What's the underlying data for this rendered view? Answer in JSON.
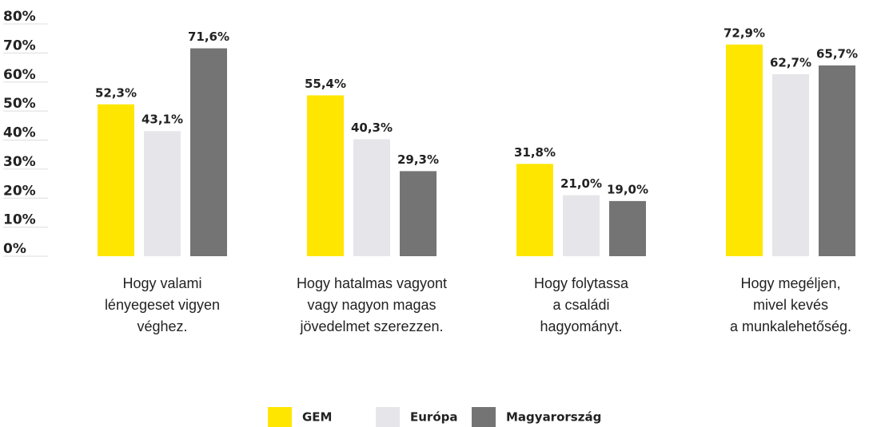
{
  "chart_data": {
    "type": "bar",
    "categories": [
      "Hogy valami\nlényegeset vigyen\nvéghez.",
      "Hogy hatalmas vagyont\nvagy nagyon magas\njövedelmet szerezzen.",
      "Hogy folytassa\na családi\nhagyományt.",
      "Hogy megéljen,\nmivel kevés\na munkalehetőség."
    ],
    "series": [
      {
        "name": "GEM",
        "color": "#ffe600",
        "values": [
          52.3,
          55.4,
          31.8,
          72.9
        ],
        "value_labels": [
          "52,3%",
          "55,4%",
          "31,8%",
          "72,9%"
        ]
      },
      {
        "name": "Európa",
        "color": "#e6e5ea",
        "values": [
          43.1,
          40.3,
          21.0,
          62.7
        ],
        "value_labels": [
          "43,1%",
          "40,3%",
          "21,0%",
          "62,7%"
        ]
      },
      {
        "name": "Magyarország",
        "color": "#747474",
        "values": [
          71.6,
          29.3,
          19.0,
          65.7
        ],
        "value_labels": [
          "71,6%",
          "29,3%",
          "19,0%",
          "65,7%"
        ]
      }
    ],
    "ylim": [
      0,
      80
    ],
    "yticks": [
      {
        "value": 0,
        "label": "0%"
      },
      {
        "value": 10,
        "label": "10%"
      },
      {
        "value": 20,
        "label": "20%"
      },
      {
        "value": 30,
        "label": "30%"
      },
      {
        "value": 40,
        "label": "40%"
      },
      {
        "value": 50,
        "label": "50%"
      },
      {
        "value": 60,
        "label": "60%"
      },
      {
        "value": 70,
        "label": "70%"
      },
      {
        "value": 80,
        "label": "80%"
      }
    ],
    "legend": "bottom"
  }
}
